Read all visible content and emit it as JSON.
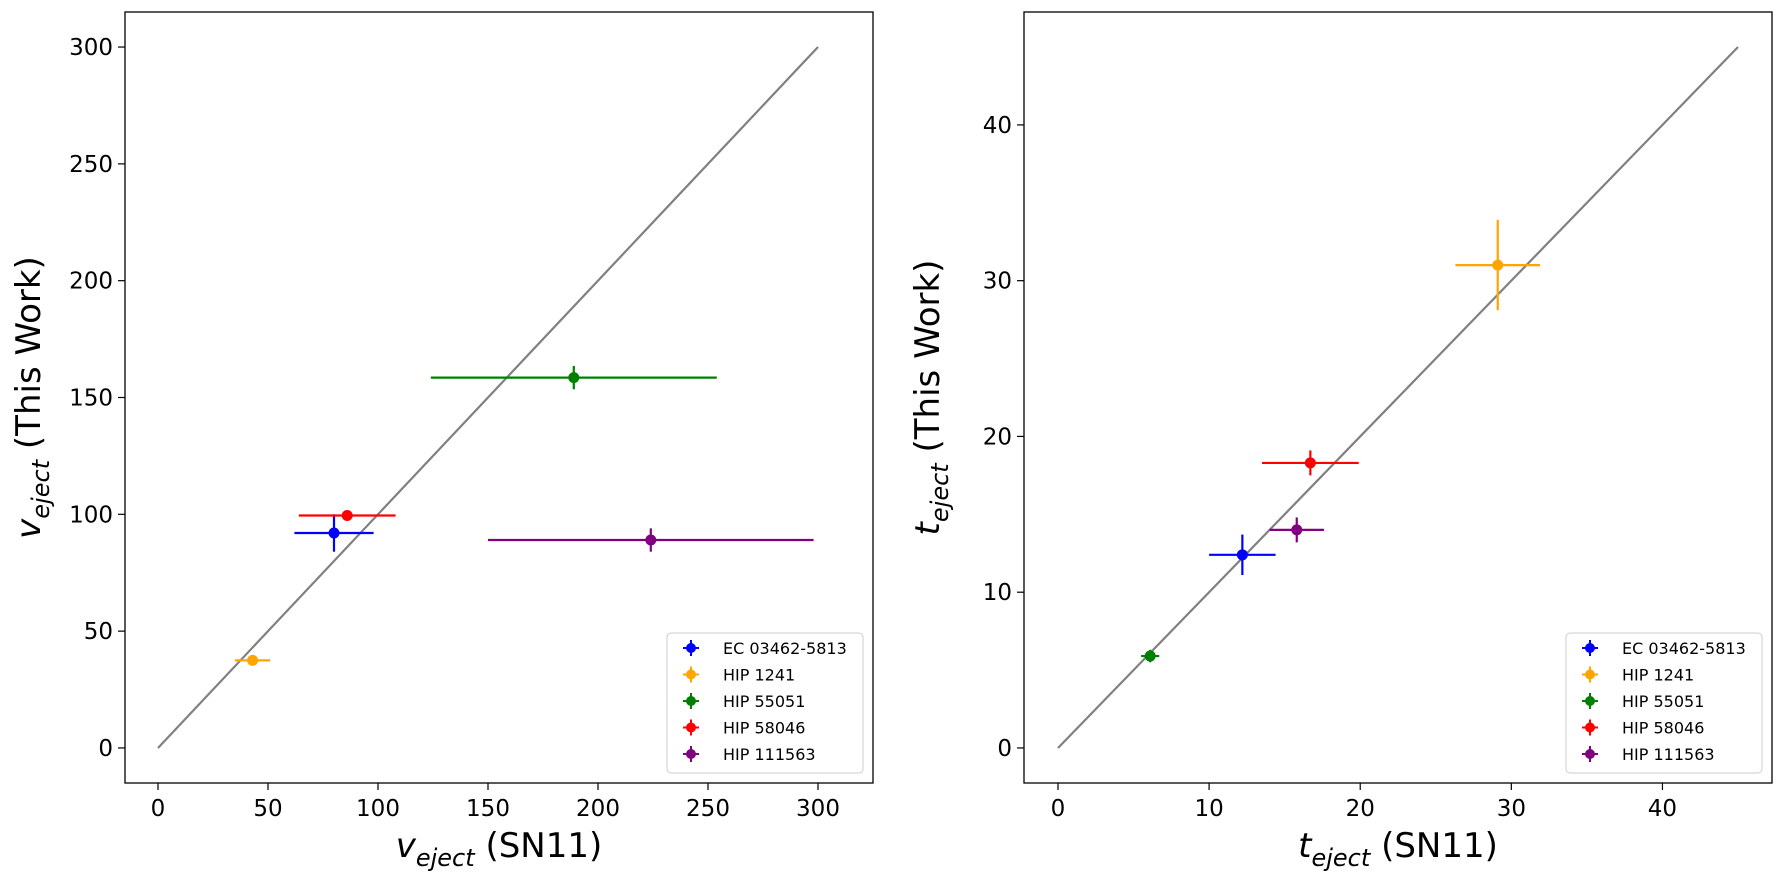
{
  "chart_data": [
    {
      "type": "scatter",
      "panel": "left",
      "xlabel_sym": "v",
      "xlabel_sub": "eject",
      "xlabel_rest": " (SN11)",
      "ylabel_sym": "v",
      "ylabel_sub": "eject",
      "ylabel_rest": " (This Work)",
      "xlim": [
        -15,
        325
      ],
      "ylim": [
        -15,
        315
      ],
      "xticks": [
        0,
        50,
        100,
        150,
        200,
        250,
        300
      ],
      "yticks": [
        0,
        50,
        100,
        150,
        200,
        250,
        300
      ],
      "identity_line": [
        0,
        300
      ],
      "legend_position": "lower-right",
      "series": [
        {
          "name": "EC 03462-5813",
          "color": "#0000ff",
          "x": 80,
          "xerr": 18,
          "y": 92,
          "yerr": 8
        },
        {
          "name": "HIP 1241",
          "color": "#ffa500",
          "x": 43,
          "xerr": 8,
          "y": 37.5,
          "yerr": 1.5
        },
        {
          "name": "HIP 55051",
          "color": "#008000",
          "x": 189,
          "xerr": 65,
          "y": 158.5,
          "yerr": 5
        },
        {
          "name": "HIP 58046",
          "color": "#ff0000",
          "x": 86,
          "xerr": 22,
          "y": 99.5,
          "yerr": 2
        },
        {
          "name": "HIP 111563",
          "color": "#800080",
          "x": 224,
          "xerr": 74,
          "y": 89,
          "yerr": 5
        }
      ]
    },
    {
      "type": "scatter",
      "panel": "right",
      "xlabel_sym": "t",
      "xlabel_sub": "eject",
      "xlabel_rest": " (SN11)",
      "ylabel_sym": "t",
      "ylabel_sub": "eject",
      "ylabel_rest": " (This Work)",
      "xlim": [
        -2.25,
        47.25
      ],
      "ylim": [
        -2.25,
        47.25
      ],
      "xticks": [
        0,
        10,
        20,
        30,
        40
      ],
      "yticks": [
        0,
        10,
        20,
        30,
        40
      ],
      "identity_line": [
        0,
        45
      ],
      "legend_position": "lower-right",
      "series": [
        {
          "name": "EC 03462-5813",
          "color": "#0000ff",
          "x": 12.2,
          "xerr": 2.2,
          "y": 12.4,
          "yerr": 1.3
        },
        {
          "name": "HIP 1241",
          "color": "#ffa500",
          "x": 29.1,
          "xerr": 2.8,
          "y": 31,
          "yerr": 2.9
        },
        {
          "name": "HIP 55051",
          "color": "#008000",
          "x": 6.1,
          "xerr": 0.6,
          "y": 5.9,
          "yerr": 0.4
        },
        {
          "name": "HIP 58046",
          "color": "#ff0000",
          "x": 16.7,
          "xerr": 3.2,
          "y": 18.3,
          "yerr": 0.8
        },
        {
          "name": "HIP 111563",
          "color": "#800080",
          "x": 15.8,
          "xerr": 1.8,
          "y": 14,
          "yerr": 0.8
        }
      ]
    }
  ]
}
